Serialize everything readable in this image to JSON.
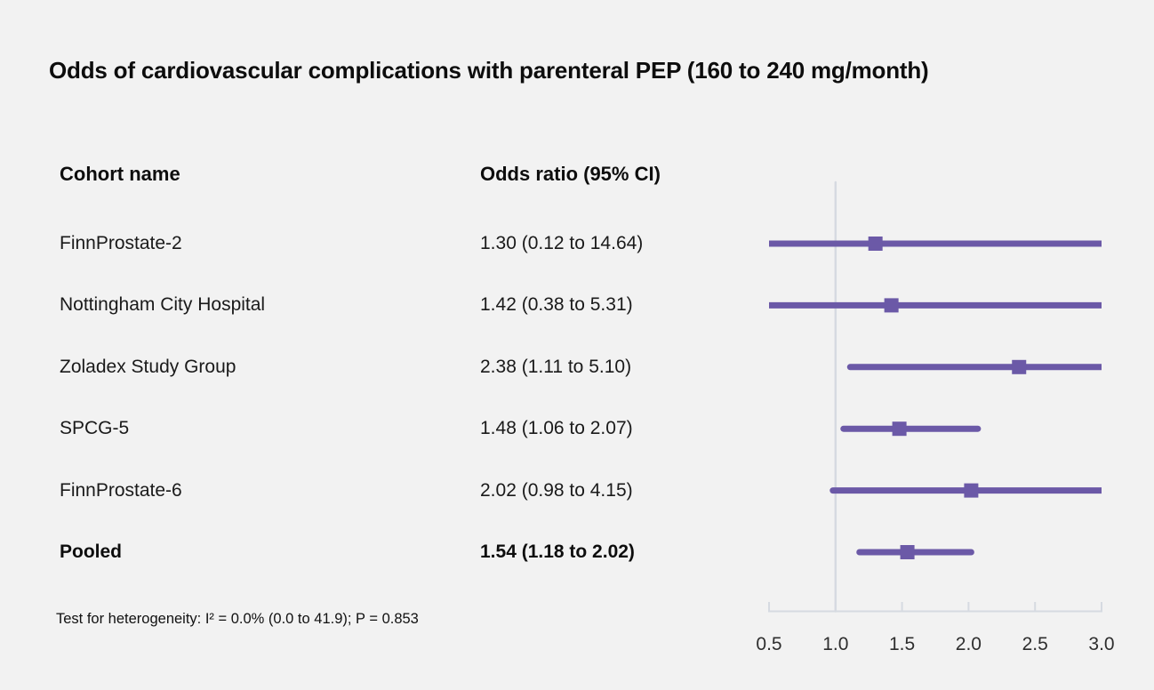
{
  "chart_data": {
    "type": "forest",
    "title": "Odds of cardiovascular complications with parenteral PEP (160 to 240 mg/month)",
    "columns": [
      "Cohort name",
      "Odds ratio (95% CI)"
    ],
    "rows": [
      {
        "name": "FinnProstate-2",
        "label": "1.30 (0.12 to 14.64)",
        "or": 1.3,
        "lo": 0.12,
        "hi": 14.64,
        "pooled": false
      },
      {
        "name": "Nottingham City Hospital",
        "label": "1.42 (0.38 to 5.31)",
        "or": 1.42,
        "lo": 0.38,
        "hi": 5.31,
        "pooled": false
      },
      {
        "name": "Zoladex Study Group",
        "label": "2.38 (1.11 to 5.10)",
        "or": 2.38,
        "lo": 1.11,
        "hi": 5.1,
        "pooled": false
      },
      {
        "name": "SPCG-5",
        "label": "1.48 (1.06 to 2.07)",
        "or": 1.48,
        "lo": 1.06,
        "hi": 2.07,
        "pooled": false
      },
      {
        "name": "FinnProstate-6",
        "label": "2.02 (0.98 to 4.15)",
        "or": 2.02,
        "lo": 0.98,
        "hi": 4.15,
        "pooled": false
      },
      {
        "name": "Pooled",
        "label": "1.54 (1.18 to 2.02)",
        "or": 1.54,
        "lo": 1.18,
        "hi": 2.02,
        "pooled": true
      }
    ],
    "x_axis": {
      "min": 0.5,
      "max": 3.0,
      "ticks": [
        0.5,
        1.0,
        1.5,
        2.0,
        2.5,
        3.0
      ],
      "tick_labels": [
        "0.5",
        "1.0",
        "1.5",
        "2.0",
        "2.5",
        "3.0"
      ],
      "reference_line": 1.0
    },
    "footnote": "Test for heterogeneity: I² = 0.0% (0.0 to 41.9); P = 0.853",
    "legend": null,
    "grid": false,
    "colors": {
      "marker": "#6b59a7",
      "axis": "#d6dae1",
      "background": "#f2f2f2",
      "text": "#0d0d0d"
    }
  }
}
